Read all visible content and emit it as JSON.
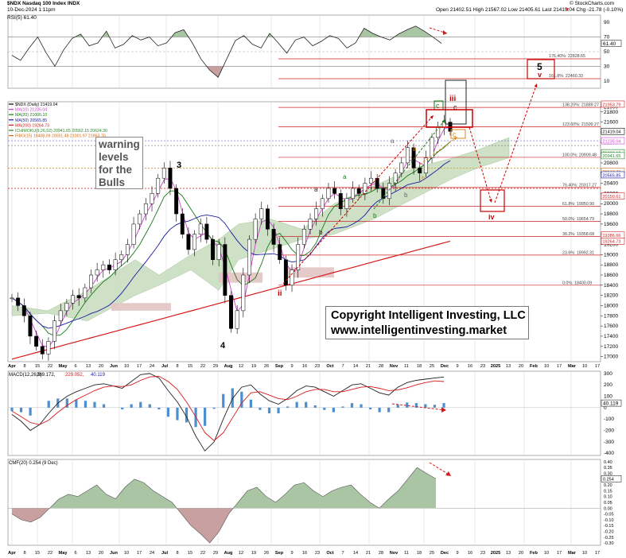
{
  "header": {
    "symbol_line": "$NDX Nasdaq 100 Index  INDX",
    "date_line": "10-Dec-2024 1:11pm",
    "ohlc_line": "Open 21402.51  High 21567.02  Low 21405.61  Last 21419.04  Chg -21.78 (-0.10%)",
    "ohlc_marker": "▼",
    "credit": "© StockCharts.com"
  },
  "rsi_panel": {
    "legend": "RSI(5) 61.40",
    "value_tag": "61.40",
    "ticks": [
      "90",
      "70",
      "50",
      "30",
      "10"
    ]
  },
  "price_panel": {
    "legend": [
      {
        "text": "$NDX (Daily) 21419.04",
        "color": "#000000"
      },
      {
        "text": "MA(10) 21235.04",
        "color": "#d040d0"
      },
      {
        "text": "MA(20) 21000.10",
        "color": "#1a7a1a"
      },
      {
        "text": "MA(50) 20565.85",
        "color": "#1a1aa0"
      },
      {
        "text": "MA(200) 19264.73",
        "color": "#d81818"
      },
      {
        "text": "ICHIMOKU(9,26,52) 20941.65 20562.15 20624.30",
        "color": "#2a8a2a"
      },
      {
        "text": "FIBO(15) 19408.09 20051.48 21001.97 21863.70",
        "color": "#d06a10"
      }
    ],
    "ticks": [
      "21900",
      "21800",
      "21600",
      "21400",
      "21200",
      "21000",
      "20800",
      "20600",
      "20400",
      "20200",
      "20000",
      "19800",
      "19600",
      "19400",
      "19200",
      "19000",
      "18800",
      "18600",
      "18400",
      "18200",
      "18000",
      "17800",
      "17600",
      "17400",
      "17200",
      "17000"
    ],
    "price_tags": [
      {
        "text": "21953.79",
        "price": 21953.79,
        "color": "#cc2222"
      },
      {
        "text": "21419.04",
        "price": 21419.04,
        "color": "#000000"
      },
      {
        "text": "21235.04",
        "price": 21235.04,
        "color": "#d040d0"
      },
      {
        "text": "21000.10",
        "price": 21000.1,
        "color": "#1a7a1a"
      },
      {
        "text": "20941.65",
        "price": 20941.65,
        "color": "#2a8a2a"
      },
      {
        "text": "20633.30",
        "price": 20633.3,
        "color": "#d06a10"
      },
      {
        "text": "20565.85",
        "price": 20565.85,
        "color": "#1a1aa0"
      },
      {
        "text": "20150.61",
        "price": 20150.61,
        "color": "#cc2222"
      },
      {
        "text": "19386.66",
        "price": 19386.66,
        "color": "#cc2222"
      },
      {
        "text": "19264.73",
        "price": 19264.73,
        "color": "#d81818"
      }
    ],
    "fib_levels": [
      {
        "label": "138.20%: 21889.27",
        "price": 21889.27
      },
      {
        "label": "123.60%: 21509.27",
        "price": 21509.27
      },
      {
        "label": "100.0%: 20909.48",
        "price": 20909.48
      },
      {
        "label": "76.40%: 20317.27",
        "price": 20317.27
      },
      {
        "label": "61.8%: 19950.90",
        "price": 19950.9
      },
      {
        "label": "50.0%: 19654.79",
        "price": 19654.79
      },
      {
        "label": "38.2%: 19358.68",
        "price": 19358.68
      },
      {
        "label": "23.6%: 18992.31",
        "price": 18992.31
      },
      {
        "label": "0.0%: 18400.09",
        "price": 18400.09
      }
    ],
    "rsi_fib_levels": [
      {
        "label": "176.40%: 22828.65"
      },
      {
        "label": "161.8%: 22460.33"
      }
    ],
    "warning_box": [
      "warning",
      "levels",
      "for the",
      "Bulls"
    ],
    "copyright_lines": [
      "Copyright Intelligent Investing, LLC",
      "www.intelligentinvesting.market"
    ],
    "wave_labels": {
      "w3": "3",
      "w4": "4",
      "w5": "5",
      "v": "v",
      "ii": "ii",
      "iii": "iii",
      "iv": "iv",
      "c_black": "c",
      "c_green": "c",
      "c_orange": "c",
      "a_gray": "a",
      "a_black": "a",
      "a_green": "a",
      "a_orange": "a",
      "b_gray": "b",
      "b_black": "b",
      "b_green": "b",
      "b_orange": "b"
    }
  },
  "macd_panel": {
    "legend": [
      {
        "text": "MACD(12,26,9) 269.172, 229.052, 40.119",
        "color": "#000000"
      },
      {
        "text": "MACD(12,26,9)",
        "color": "#000000"
      },
      {
        "text": " 269.172,",
        "color": "#000000"
      },
      {
        "text": " 229.052,",
        "color": "#d81818"
      },
      {
        "text": " 40.119",
        "color": "#1a1aa0"
      }
    ],
    "value_tag": "40.119",
    "ticks": [
      "300",
      "200",
      "100",
      "0",
      "-100",
      "-200",
      "-300",
      "-400"
    ]
  },
  "cmf_panel": {
    "legend": "CMF(20) 0.254 (9 Dec)",
    "value_tag": "0.254",
    "ticks": [
      "0.40",
      "0.35",
      "0.30",
      "0.25",
      "0.20",
      "0.15",
      "0.10",
      "0.05",
      "0.00",
      "-0.05",
      "-0.10",
      "-0.15",
      "-0.20",
      "-0.25",
      "-0.30"
    ]
  },
  "x_axis": {
    "labels": [
      "Apr",
      "8",
      "15",
      "22",
      "May",
      "6",
      "13",
      "20",
      "Jun",
      "10",
      "17",
      "24",
      "Jul",
      "8",
      "15",
      "22",
      "29",
      "Aug",
      "12",
      "19",
      "26",
      "Sep",
      "9",
      "16",
      "23",
      "Oct",
      "7",
      "14",
      "21",
      "28",
      "Nov",
      "11",
      "18",
      "25",
      "Dec",
      "9",
      "16",
      "23",
      "2025",
      "13",
      "20",
      "Feb",
      "10",
      "17",
      "Mar",
      "10",
      "17"
    ],
    "bold": [
      "Apr",
      "May",
      "Jun",
      "Jul",
      "Aug",
      "Sep",
      "Oct",
      "Nov",
      "Dec",
      "2025",
      "Feb",
      "Mar"
    ]
  },
  "colors": {
    "up_candle": "#ffffff",
    "down_candle": "#000000",
    "cloud_bull": "#c9dec0",
    "cloud_bear": "#e3c3c3",
    "annotation_red": "#cc0000",
    "fib_line": "#cc2222",
    "histogram_blue": "#4b8fd0",
    "cmf_fill": "#a9c5a4",
    "cmf_neg_fill": "#c9a0a0"
  },
  "chart_data": [
    {
      "type": "line",
      "title": "RSI(5)",
      "ylim": [
        0,
        100
      ],
      "x": [
        "Apr",
        "May",
        "Jun",
        "Jul",
        "Aug",
        "Sep",
        "Oct",
        "Nov",
        "Dec"
      ],
      "series": [
        {
          "name": "RSI(5)",
          "values": [
            45,
            75,
            60,
            80,
            15,
            75,
            70,
            85,
            61.4
          ]
        }
      ]
    },
    {
      "type": "line",
      "title": "$NDX (Daily)",
      "ylim": [
        16900,
        22000
      ],
      "x": [
        "Apr 1",
        "Apr 19",
        "May 6",
        "Jun 3",
        "Jul 10",
        "Jul 25",
        "Aug 5",
        "Aug 20",
        "Sep 6",
        "Oct 11",
        "Nov 11",
        "Dec 6",
        "Dec 10"
      ],
      "series": [
        {
          "name": "$NDX",
          "values": [
            18150,
            17050,
            17900,
            18900,
            20700,
            19300,
            17550,
            19900,
            18400,
            20200,
            21100,
            21600,
            21419.04
          ]
        },
        {
          "name": "MA(200)",
          "values": [
            17150,
            17300,
            17500,
            17900,
            18300,
            18450,
            18550,
            18650,
            18800,
            18950,
            19100,
            19230,
            19264.73
          ]
        }
      ]
    },
    {
      "type": "line",
      "title": "MACD(12,26,9)",
      "ylim": [
        -400,
        300
      ],
      "series": [
        {
          "name": "MACD",
          "values": [
            -50,
            -200,
            100,
            200,
            300,
            50,
            -380,
            200,
            50,
            150,
            220,
            269.172
          ]
        },
        {
          "name": "Signal",
          "values": [
            -20,
            -120,
            50,
            150,
            250,
            100,
            -250,
            100,
            80,
            120,
            180,
            229.052
          ]
        }
      ]
    },
    {
      "type": "area",
      "title": "CMF(20)",
      "ylim": [
        -0.3,
        0.4
      ],
      "series": [
        {
          "name": "CMF(20)",
          "values": [
            -0.05,
            -0.1,
            0.1,
            0.15,
            0.2,
            0.05,
            -0.3,
            0.2,
            0.15,
            0.2,
            0.1,
            0.35,
            0.254
          ]
        }
      ]
    }
  ]
}
